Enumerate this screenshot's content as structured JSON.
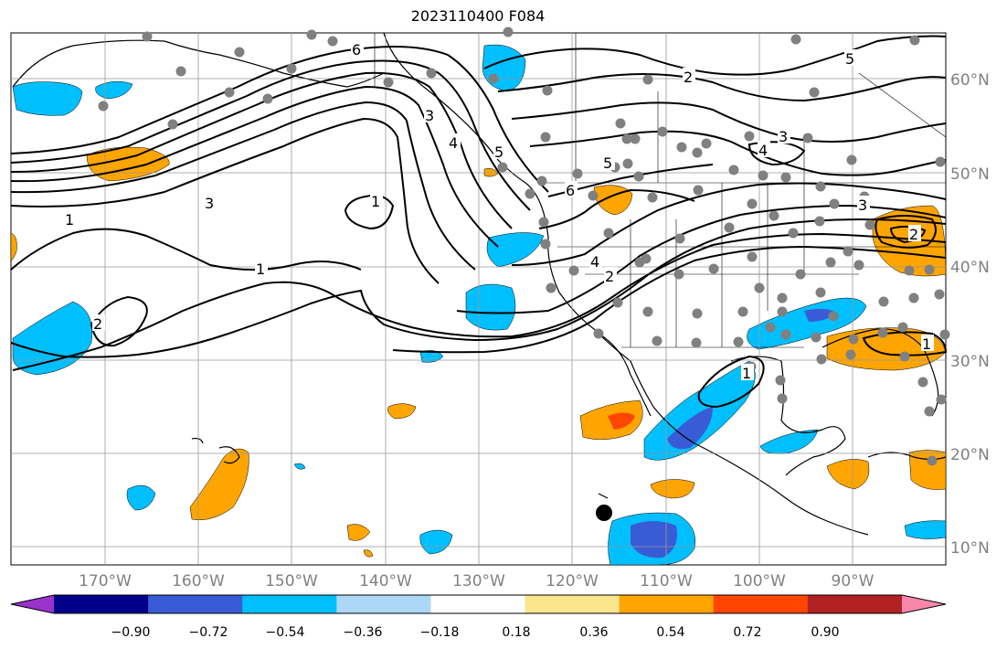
{
  "title": "2023110400 F084",
  "lat_labels": [
    "60°N",
    "50°N",
    "40°N",
    "30°N",
    "20°N",
    "10°N"
  ],
  "lon_labels": [
    "170°W",
    "160°W",
    "150°W",
    "140°W",
    "130°W",
    "120°W",
    "110°W",
    "100°W",
    "90°W"
  ],
  "colorbar": {
    "colors": [
      "#9933cc",
      "#00008b",
      "#3a5bd6",
      "#00bfff",
      "#add8f5",
      "#ffffff",
      "#fae58c",
      "#ffa500",
      "#ff4500",
      "#b22222",
      "#f986ab"
    ],
    "ticks": [
      "−0.90",
      "−0.72",
      "−0.54",
      "−0.36",
      "−0.18",
      "0.18",
      "0.36",
      "0.54",
      "0.72",
      "0.90"
    ]
  },
  "contour_labels": [
    "6",
    "5",
    "4",
    "3",
    "2",
    "1",
    "1",
    "1",
    "2",
    "3",
    "6",
    "5",
    "4",
    "3",
    "2",
    "1",
    "5",
    "4",
    "3",
    "2",
    "1"
  ],
  "colors": {
    "land_outline": "#000000",
    "grid": "#999999",
    "station_marker": "#808080",
    "marker_black": "#000000"
  }
}
